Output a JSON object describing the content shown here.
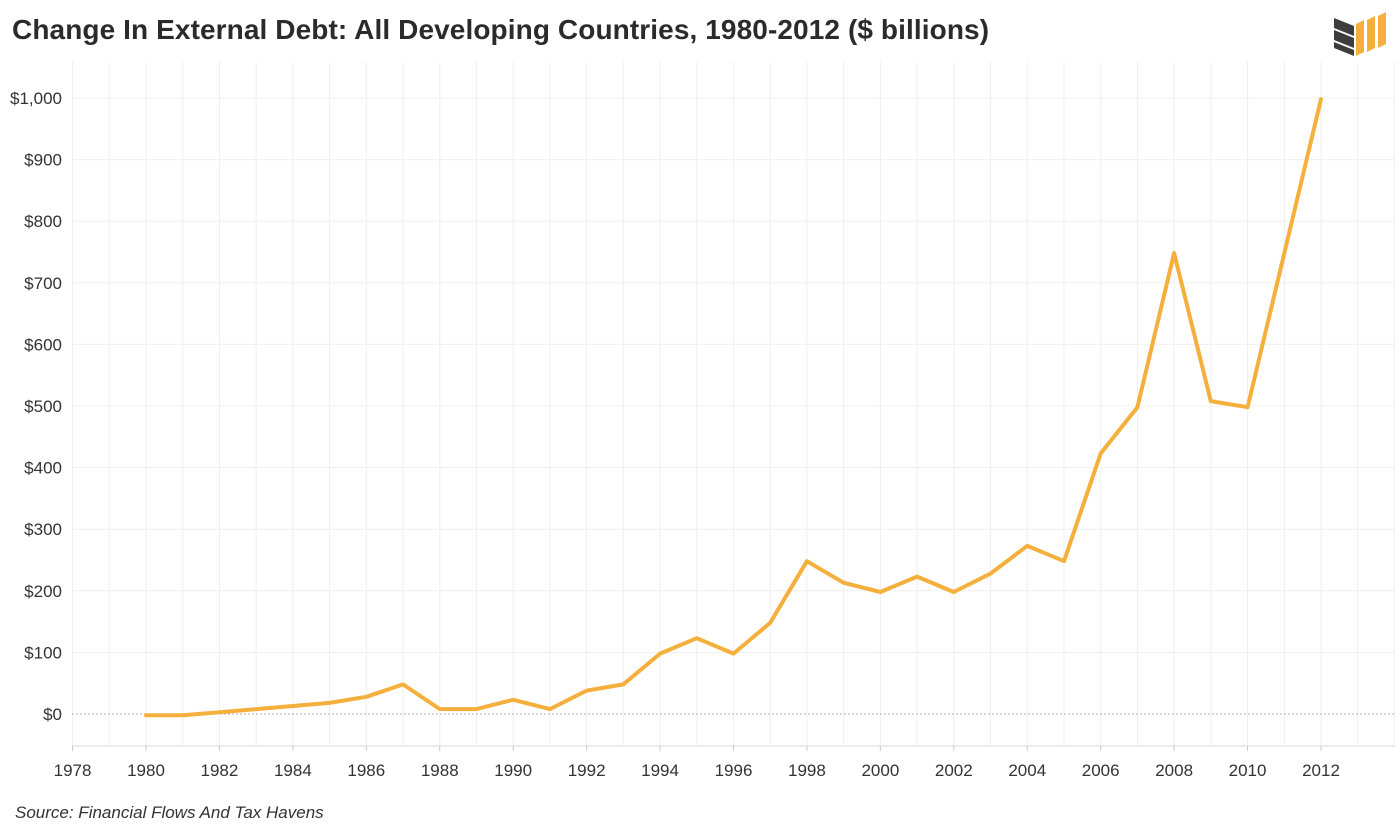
{
  "title": "Change In External Debt: All Developing Countries, 1980-2012 ($ billions)",
  "source": "Source: Financial Flows And Tax Havens",
  "logo_icon": "bars-logo-icon",
  "colors": {
    "line": "#F5AF3C",
    "grid": "#EFEFEF",
    "zero_line": "#B0B0B0",
    "text": "#333333",
    "logo_dark": "#3D3D3D",
    "logo_accent": "#F5AF3C"
  },
  "chart_data": {
    "type": "line",
    "title": "Change In External Debt: All Developing Countries, 1980-2012 ($ billions)",
    "xlabel": "",
    "ylabel": "",
    "xlim": [
      1978,
      2014
    ],
    "ylim": [
      -50,
      1050
    ],
    "grid": true,
    "x_ticks": [
      1978,
      1980,
      1982,
      1984,
      1986,
      1988,
      1990,
      1992,
      1994,
      1996,
      1998,
      2000,
      2002,
      2004,
      2006,
      2008,
      2010,
      2012
    ],
    "y_ticks": [
      0,
      100,
      200,
      300,
      400,
      500,
      600,
      700,
      800,
      900,
      1000
    ],
    "y_tick_labels": [
      "$0",
      "$100",
      "$200",
      "$300",
      "$400",
      "$500",
      "$600",
      "$700",
      "$800",
      "$900",
      "$1,000"
    ],
    "series": [
      {
        "x": [
          1980,
          1981,
          1982,
          1983,
          1984,
          1985,
          1986,
          1987,
          1988,
          1989,
          1990,
          1991,
          1992,
          1993,
          1994,
          1995,
          1996,
          1997,
          1998,
          1999,
          2000,
          2001,
          2002,
          2003,
          2004,
          2005,
          2006,
          2007,
          2008,
          2009,
          2010,
          2011,
          2012
        ],
        "values": [
          -2,
          -2,
          3,
          8,
          13,
          18,
          28,
          48,
          8,
          8,
          23,
          8,
          38,
          48,
          98,
          123,
          98,
          148,
          248,
          213,
          198,
          223,
          198,
          228,
          273,
          248,
          423,
          498,
          748,
          508,
          498,
          748,
          998
        ]
      }
    ]
  }
}
